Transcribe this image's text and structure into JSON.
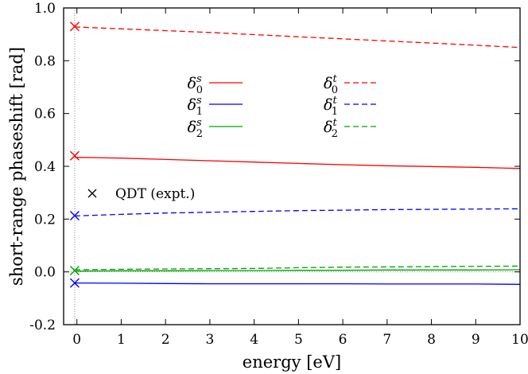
{
  "chart_data": {
    "type": "line",
    "xlabel": "energy [eV]",
    "ylabel": "short-range phaseshift [rad]",
    "xlim": [
      -0.3,
      10
    ],
    "ylim": [
      -0.2,
      1.0
    ],
    "x_ticks": [
      0,
      1,
      2,
      3,
      4,
      5,
      6,
      7,
      8,
      9,
      10
    ],
    "y_ticks": [
      -0.2,
      0.0,
      0.2,
      0.4,
      0.6,
      0.8,
      1.0
    ],
    "x_tick_labels": [
      "0",
      "1",
      "2",
      "3",
      "4",
      "5",
      "6",
      "7",
      "8",
      "9",
      "10"
    ],
    "y_tick_labels": [
      "-0.2",
      "0.0",
      "0.2",
      "0.4",
      "0.6",
      "0.8",
      "1.0"
    ],
    "reference_lines": [
      {
        "orientation": "horizontal",
        "value": 0.0,
        "style": "dotted",
        "color": "#888888"
      },
      {
        "orientation": "vertical",
        "value": -0.05,
        "style": "dotted",
        "color": "#888888"
      }
    ],
    "series": [
      {
        "name": "δ0s",
        "label_base": "δ",
        "sub": "0",
        "sup": "s",
        "color": "#ff0000",
        "dash": "solid",
        "x": [
          -0.05,
          1,
          2,
          3,
          4,
          5,
          6,
          7,
          8,
          9,
          10
        ],
        "y": [
          0.434,
          0.431,
          0.426,
          0.421,
          0.416,
          0.411,
          0.406,
          0.402,
          0.399,
          0.396,
          0.392
        ]
      },
      {
        "name": "δ1s",
        "label_base": "δ",
        "sub": "1",
        "sup": "s",
        "color": "#0000ff",
        "dash": "solid",
        "x": [
          -0.05,
          1,
          2,
          3,
          4,
          5,
          6,
          7,
          8,
          9,
          10
        ],
        "y": [
          -0.042,
          -0.043,
          -0.044,
          -0.045,
          -0.045,
          -0.045,
          -0.045,
          -0.046,
          -0.046,
          -0.046,
          -0.047
        ]
      },
      {
        "name": "δ2s",
        "label_base": "δ",
        "sub": "2",
        "sup": "s",
        "color": "#00a000",
        "dash": "solid",
        "x": [
          -0.05,
          1,
          2,
          3,
          4,
          5,
          6,
          7,
          8,
          9,
          10
        ],
        "y": [
          0.003,
          0.004,
          0.004,
          0.005,
          0.005,
          0.006,
          0.006,
          0.007,
          0.007,
          0.007,
          0.008
        ]
      },
      {
        "name": "δ0t",
        "label_base": "δ",
        "sub": "0",
        "sup": "t",
        "color": "#ff0000",
        "dash": "dashed",
        "x": [
          -0.05,
          1,
          2,
          3,
          4,
          5,
          6,
          7,
          8,
          9,
          10
        ],
        "y": [
          0.928,
          0.921,
          0.914,
          0.907,
          0.899,
          0.891,
          0.883,
          0.875,
          0.867,
          0.859,
          0.85
        ]
      },
      {
        "name": "δ1t",
        "label_base": "δ",
        "sub": "1",
        "sup": "t",
        "color": "#0000ff",
        "dash": "dashed",
        "x": [
          -0.05,
          1,
          2,
          3,
          4,
          5,
          6,
          7,
          8,
          9,
          10
        ],
        "y": [
          0.212,
          0.218,
          0.223,
          0.226,
          0.229,
          0.232,
          0.234,
          0.236,
          0.237,
          0.238,
          0.239
        ]
      },
      {
        "name": "δ2t",
        "label_base": "δ",
        "sub": "2",
        "sup": "t",
        "color": "#00a000",
        "dash": "dashed",
        "x": [
          -0.05,
          1,
          2,
          3,
          4,
          5,
          6,
          7,
          8,
          9,
          10
        ],
        "y": [
          0.008,
          0.01,
          0.011,
          0.012,
          0.013,
          0.016,
          0.018,
          0.019,
          0.02,
          0.021,
          0.022
        ]
      }
    ],
    "markers": {
      "name": "QDT (expt.)",
      "symbol": "×",
      "points": [
        {
          "x": -0.05,
          "y": 0.93,
          "color": "#ff0000"
        },
        {
          "x": -0.05,
          "y": 0.44,
          "color": "#ff0000"
        },
        {
          "x": -0.05,
          "y": 0.213,
          "color": "#0000ff"
        },
        {
          "x": -0.05,
          "y": 0.005,
          "color": "#00a000"
        },
        {
          "x": -0.05,
          "y": -0.042,
          "color": "#0000ff"
        }
      ]
    },
    "legend_placement": "upper-center, two columns",
    "grid": false
  }
}
